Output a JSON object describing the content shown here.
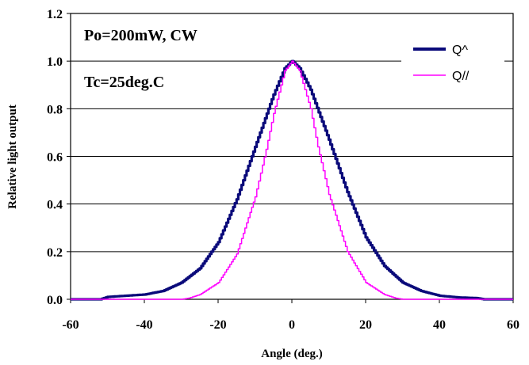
{
  "chart_data": {
    "type": "line",
    "xlabel": "Angle (deg.)",
    "ylabel": "Relative light output",
    "xlim": [
      -60,
      60
    ],
    "ylim": [
      0,
      1.2
    ],
    "x_ticks": [
      "-60",
      "-40",
      "-20",
      "0",
      "20",
      "40",
      "60"
    ],
    "y_ticks": [
      "0.0",
      "0.2",
      "0.4",
      "0.6",
      "0.8",
      "1.0",
      "1.2"
    ],
    "grid": "horizontal",
    "legend_position": "top-right",
    "annotations": [
      "Po=200mW, CW",
      "Tc=25deg.C"
    ],
    "series": [
      {
        "name": "Q^",
        "color": "#0a0a7a",
        "x": [
          -60,
          -52,
          -50,
          -45,
          -40,
          -35,
          -30,
          -25,
          -20,
          -15,
          -10,
          -5,
          -2,
          0,
          2,
          5,
          10,
          15,
          20,
          25,
          30,
          35,
          40,
          45,
          50,
          52,
          60
        ],
        "y": [
          0.0,
          0.0,
          0.01,
          0.015,
          0.02,
          0.035,
          0.07,
          0.13,
          0.24,
          0.42,
          0.64,
          0.86,
          0.97,
          1.0,
          0.97,
          0.88,
          0.67,
          0.45,
          0.26,
          0.14,
          0.07,
          0.035,
          0.015,
          0.008,
          0.005,
          0.0,
          0.0
        ]
      },
      {
        "name": "Q//",
        "color": "#ff00ff",
        "x": [
          -60,
          -30,
          -28,
          -25,
          -20,
          -15,
          -10,
          -7,
          -5,
          -2,
          0,
          2,
          5,
          7,
          10,
          15,
          20,
          25,
          28,
          30,
          60
        ],
        "y": [
          0.0,
          0.0,
          0.005,
          0.02,
          0.07,
          0.19,
          0.43,
          0.63,
          0.78,
          0.96,
          1.0,
          0.96,
          0.8,
          0.64,
          0.44,
          0.2,
          0.07,
          0.02,
          0.005,
          0.0,
          0.0
        ]
      }
    ]
  }
}
